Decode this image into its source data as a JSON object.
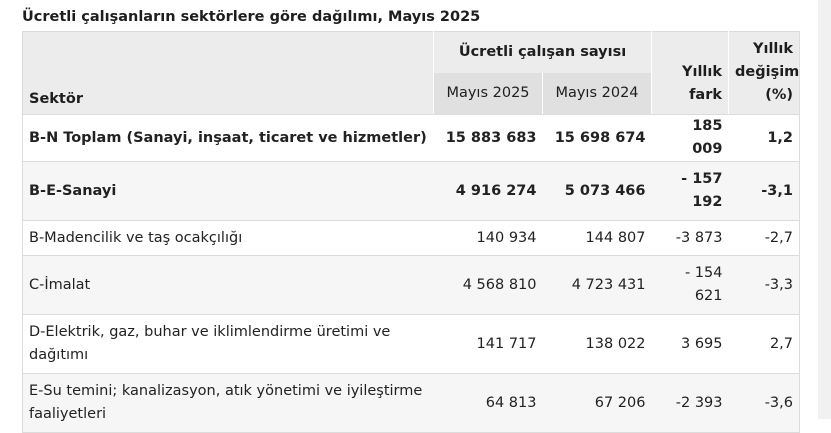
{
  "title": "Ücretli çalışanların sektörlere göre dağılımı, Mayıs 2025",
  "header": {
    "sector": "Sektör",
    "group": "Ücretli çalışan sayısı",
    "may_2025": "Mayıs 2025",
    "may_2024": "Mayıs 2024",
    "annual_diff_line1": "Yıllık",
    "annual_diff_line2": "fark",
    "annual_change_line1": "Yıllık",
    "annual_change_line2": "değişim",
    "annual_change_line3": "(%)"
  },
  "rows": [
    {
      "sector": "B-N Toplam (Sanayi, inşaat, ticaret ve hizmetler)",
      "may_2025": "15 883 683",
      "may_2024": "15 698 674",
      "diff": "185 009",
      "change": "1,2",
      "bold": true
    },
    {
      "sector": "B-E-Sanayi",
      "may_2025": "4 916 274",
      "may_2024": "5 073 466",
      "diff": "- 157 192",
      "change": "-3,1",
      "bold": true
    },
    {
      "sector": "B-Madencilik ve taş ocakçılığı",
      "may_2025": "140 934",
      "may_2024": "144 807",
      "diff": "-3 873",
      "change": "-2,7",
      "bold": false
    },
    {
      "sector": "C-İmalat",
      "may_2025": "4 568 810",
      "may_2024": "4 723 431",
      "diff": "- 154 621",
      "change": "-3,3",
      "bold": false
    },
    {
      "sector": "D-Elektrik, gaz, buhar ve iklimlendirme üretimi ve dağıtımı",
      "may_2025": "141 717",
      "may_2024": "138 022",
      "diff": "3 695",
      "change": "2,7",
      "bold": false
    },
    {
      "sector": "E-Su temini; kanalizasyon, atık yönetimi ve iyileştirme faaliyetleri",
      "may_2025": "64 813",
      "may_2024": "67 206",
      "diff": "-2 393",
      "change": "-3,6",
      "bold": false
    }
  ]
}
